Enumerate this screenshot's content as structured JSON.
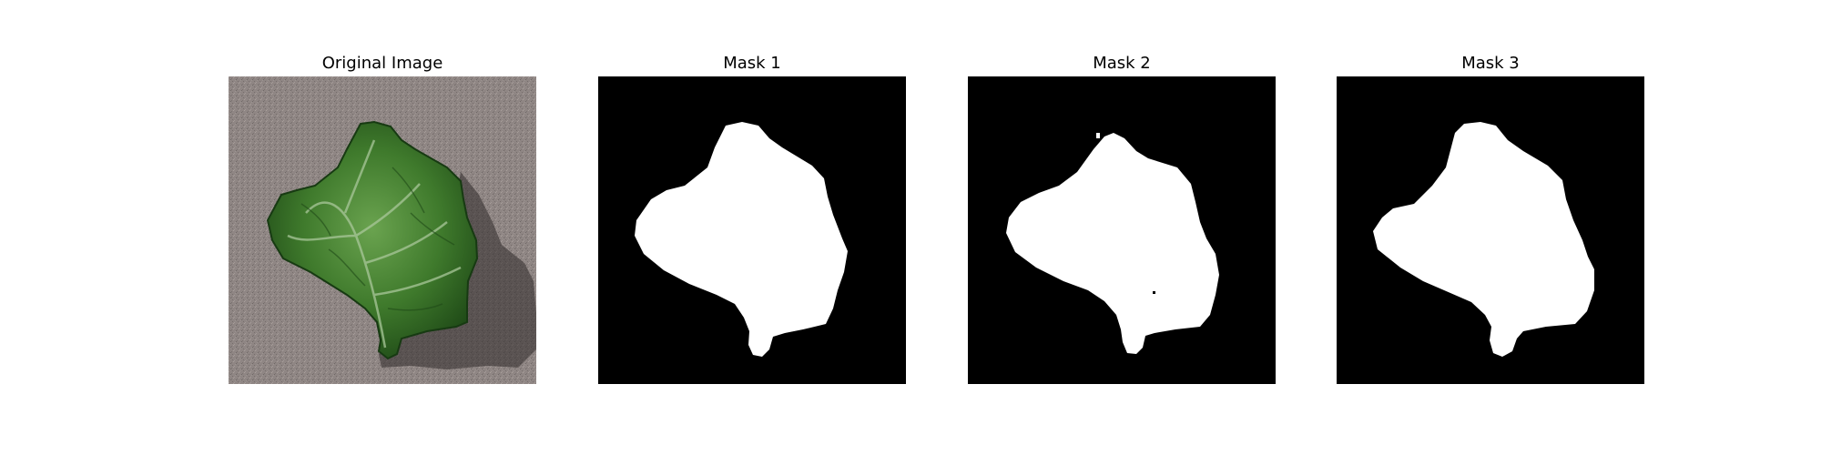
{
  "panels": [
    {
      "title": "Original Image"
    },
    {
      "title": "Mask 1"
    },
    {
      "title": "Mask 2"
    },
    {
      "title": "Mask 3"
    }
  ],
  "colors": {
    "background": "#ffffff",
    "mask_background": "#000000",
    "mask_foreground": "#ffffff",
    "leaf_dark": "#1f4a17",
    "leaf_mid": "#3f7a2c",
    "leaf_light": "#6aa34f",
    "surface": "#8f8684",
    "shadow": "#2f2a2a"
  }
}
